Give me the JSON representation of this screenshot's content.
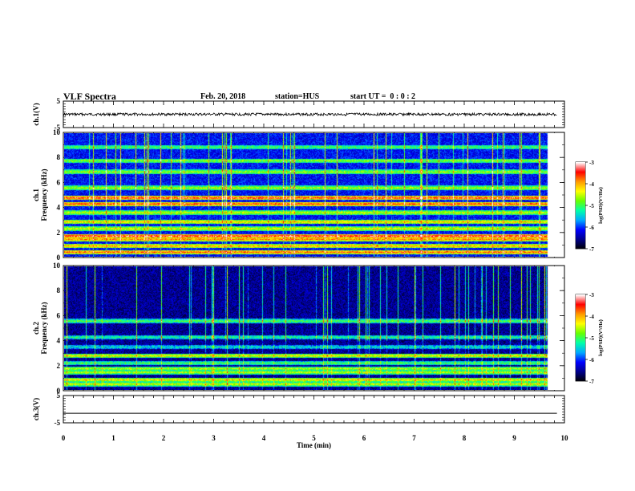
{
  "header": {
    "title": "VLF Spectra",
    "date": "Feb. 20, 2018",
    "station": "station=HUS",
    "start_ut": "start UT =  0 : 0 : 2"
  },
  "chart_data": [
    {
      "type": "line",
      "panel": "ch1-waveform",
      "ylabel": "ch.1(V)",
      "ylim": [
        -5,
        5
      ],
      "yticks": [
        "5",
        "-5"
      ],
      "xlim": [
        0,
        10
      ],
      "series": [
        {
          "x": [
            0,
            9.85
          ],
          "y": [
            0,
            0
          ],
          "style": "noisy trace"
        }
      ]
    },
    {
      "type": "heatmap",
      "panel": "ch1-spectrogram",
      "ylabel": "ch.1\nFrequency (kHz)",
      "ylim": [
        0,
        10
      ],
      "yticks": [
        "0",
        "2",
        "4",
        "6",
        "8",
        "10"
      ],
      "xlim": [
        0,
        10
      ],
      "data_xmax": 9.85,
      "bands_khz": [
        {
          "f": 0.4,
          "level": 0.62
        },
        {
          "f": 0.9,
          "level": 0.55
        },
        {
          "f": 1.45,
          "level": 0.6
        },
        {
          "f": 1.7,
          "level": 0.72
        },
        {
          "f": 2.3,
          "level": 0.45
        },
        {
          "f": 2.85,
          "level": 0.5
        },
        {
          "f": 3.6,
          "level": 0.42
        },
        {
          "f": 4.3,
          "level": 0.66
        },
        {
          "f": 4.8,
          "level": 0.68
        },
        {
          "f": 5.6,
          "level": 0.4
        },
        {
          "f": 6.9,
          "level": 0.38
        },
        {
          "f": 7.8,
          "level": 0.36
        },
        {
          "f": 8.9,
          "level": 0.3
        }
      ],
      "colorbar": {
        "label": "log(PSD)(V²/Hz)",
        "range": [
          -7,
          -3
        ],
        "ticks": [
          "-3",
          "-4",
          "-5",
          "-6",
          "-7"
        ]
      }
    },
    {
      "type": "heatmap",
      "panel": "ch2-spectrogram",
      "ylabel": "ch.2\nFrequency (kHz)",
      "ylim": [
        0,
        10
      ],
      "yticks": [
        "0",
        "2",
        "4",
        "6",
        "8",
        "10"
      ],
      "xlim": [
        0,
        10
      ],
      "data_xmax": 9.85,
      "bands_khz": [
        {
          "f": 0.5,
          "level": 0.55
        },
        {
          "f": 0.85,
          "level": 0.6
        },
        {
          "f": 1.45,
          "level": 0.52
        },
        {
          "f": 1.75,
          "level": 0.5
        },
        {
          "f": 2.2,
          "level": 0.4
        },
        {
          "f": 2.8,
          "level": 0.58
        },
        {
          "f": 3.5,
          "level": 0.3
        },
        {
          "f": 4.3,
          "level": 0.35
        },
        {
          "f": 5.6,
          "level": 0.42
        }
      ],
      "colorbar": {
        "label": "log(PSD)(V²/Hz)",
        "range": [
          -7,
          -3
        ],
        "ticks": [
          "-3",
          "-4",
          "-5",
          "-6",
          "-7"
        ]
      }
    },
    {
      "type": "line",
      "panel": "ch3-waveform",
      "ylabel": "ch.3(V)",
      "ylim": [
        -5,
        5
      ],
      "yticks": [
        "5",
        "-5"
      ],
      "xlim": [
        0,
        10
      ],
      "xlabel": "Time (min)",
      "xticks": [
        "0",
        "1",
        "2",
        "3",
        "4",
        "5",
        "6",
        "7",
        "8",
        "9",
        "10"
      ],
      "series": [
        {
          "x": [
            0,
            9.85
          ],
          "y": [
            -1.5,
            -1.5
          ],
          "style": "flat"
        }
      ]
    }
  ],
  "colors": {
    "colormap": [
      "#000000",
      "#00008b",
      "#0000ff",
      "#00aaff",
      "#00ffaa",
      "#66ff00",
      "#ffff00",
      "#ff9900",
      "#ff0000",
      "#ffffff"
    ]
  }
}
